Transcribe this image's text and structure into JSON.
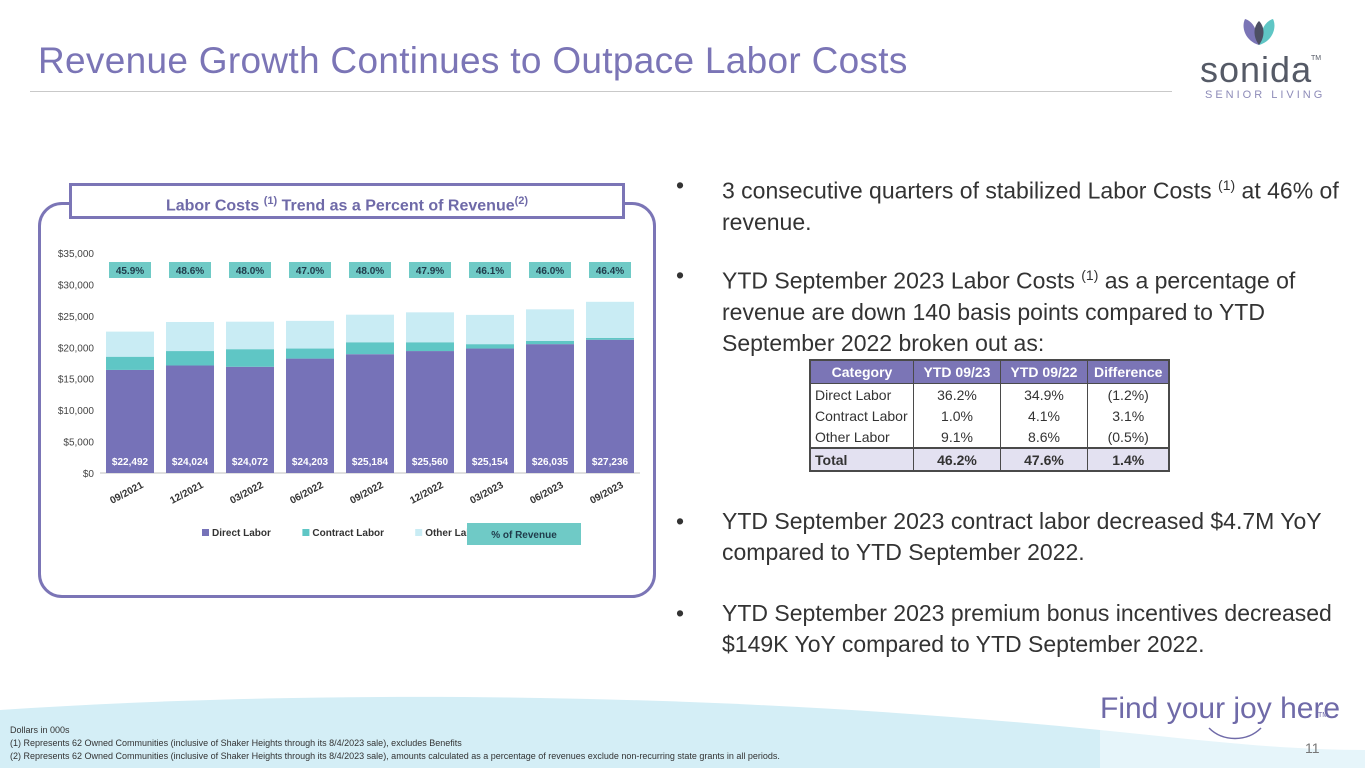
{
  "slide": {
    "title": "Revenue Growth Continues to Outpace Labor Costs",
    "page_number": "11",
    "slogan": "Find your joy here",
    "slogan_tm": "TM"
  },
  "logo": {
    "word": "sonida",
    "tm": "TM",
    "sub": "SENIOR LIVING"
  },
  "chart_header": {
    "part1": "Labor Costs ",
    "sup1": "(1)",
    "part2": " Trend as a Percent of Revenue",
    "sup2": "(2)"
  },
  "chart_data": {
    "type": "bar",
    "stacked": true,
    "categories": [
      "09/2021",
      "12/2021",
      "03/2022",
      "06/2022",
      "09/2022",
      "12/2022",
      "03/2023",
      "06/2023",
      "09/2023"
    ],
    "series": [
      {
        "name": "Direct Labor",
        "color": "#7672b8",
        "values": [
          16400,
          17100,
          16900,
          18200,
          18900,
          19400,
          19800,
          20500,
          21200
        ]
      },
      {
        "name": "Contract Labor",
        "color": "#5fc6c5",
        "values": [
          2100,
          2300,
          2800,
          1600,
          1900,
          1400,
          700,
          500,
          300
        ]
      },
      {
        "name": "Other Labor",
        "color": "#c9ecf4",
        "values": [
          3992,
          4624,
          4372,
          4403,
          4384,
          4760,
          4654,
          5035,
          5736
        ]
      }
    ],
    "totals": [
      "$22,492",
      "$24,024",
      "$24,072",
      "$24,203",
      "$25,184",
      "$25,560",
      "$25,154",
      "$26,035",
      "$27,236"
    ],
    "percent_of_revenue": [
      "45.9%",
      "48.6%",
      "48.0%",
      "47.0%",
      "48.0%",
      "47.9%",
      "46.1%",
      "46.0%",
      "46.4%"
    ],
    "ylim": [
      0,
      35000
    ],
    "yticks": [
      "$0",
      "$5,000",
      "$10,000",
      "$15,000",
      "$20,000",
      "$25,000",
      "$30,000",
      "$35,000"
    ],
    "ytick_values": [
      0,
      5000,
      10000,
      15000,
      20000,
      25000,
      30000,
      35000
    ],
    "legend_extra": "% of Revenue",
    "legend_position": "bottom",
    "grid": false
  },
  "bullets": [
    {
      "text": "3 consecutive quarters of stabilized Labor Costs ",
      "sup": "(1)",
      "after": " at 46% of revenue."
    },
    {
      "text": "YTD September 2023 Labor Costs ",
      "sup": "(1)",
      "after": " as a percentage of revenue are down 140 basis points compared to YTD September 2022 broken out as:"
    },
    {
      "text": "YTD September 2023 contract labor decreased $4.7M YoY compared to YTD September 2022.",
      "sup": "",
      "after": ""
    },
    {
      "text": "YTD September 2023 premium bonus incentives decreased $149K YoY compared to YTD September 2022.",
      "sup": "",
      "after": ""
    }
  ],
  "bullet_marker": "•",
  "table": {
    "headers": [
      "Category",
      "YTD 09/23",
      "YTD 09/22",
      "Difference"
    ],
    "rows": [
      [
        "Direct Labor",
        "36.2%",
        "34.9%",
        "(1.2%)"
      ],
      [
        "Contract Labor",
        "1.0%",
        "4.1%",
        "3.1%"
      ],
      [
        "Other Labor",
        "9.1%",
        "8.6%",
        "(0.5%)"
      ]
    ],
    "total": [
      "Total",
      "46.2%",
      "47.6%",
      "1.4%"
    ]
  },
  "footnotes": [
    "Dollars in 000s",
    "(1)     Represents 62 Owned Communities (inclusive of Shaker Heights through its 8/4/2023 sale), excludes Benefits",
    "(2)     Represents 62 Owned Communities (inclusive of Shaker Heights through its 8/4/2023 sale), amounts calculated as a percentage of revenues exclude non-recurring state grants in all periods."
  ]
}
